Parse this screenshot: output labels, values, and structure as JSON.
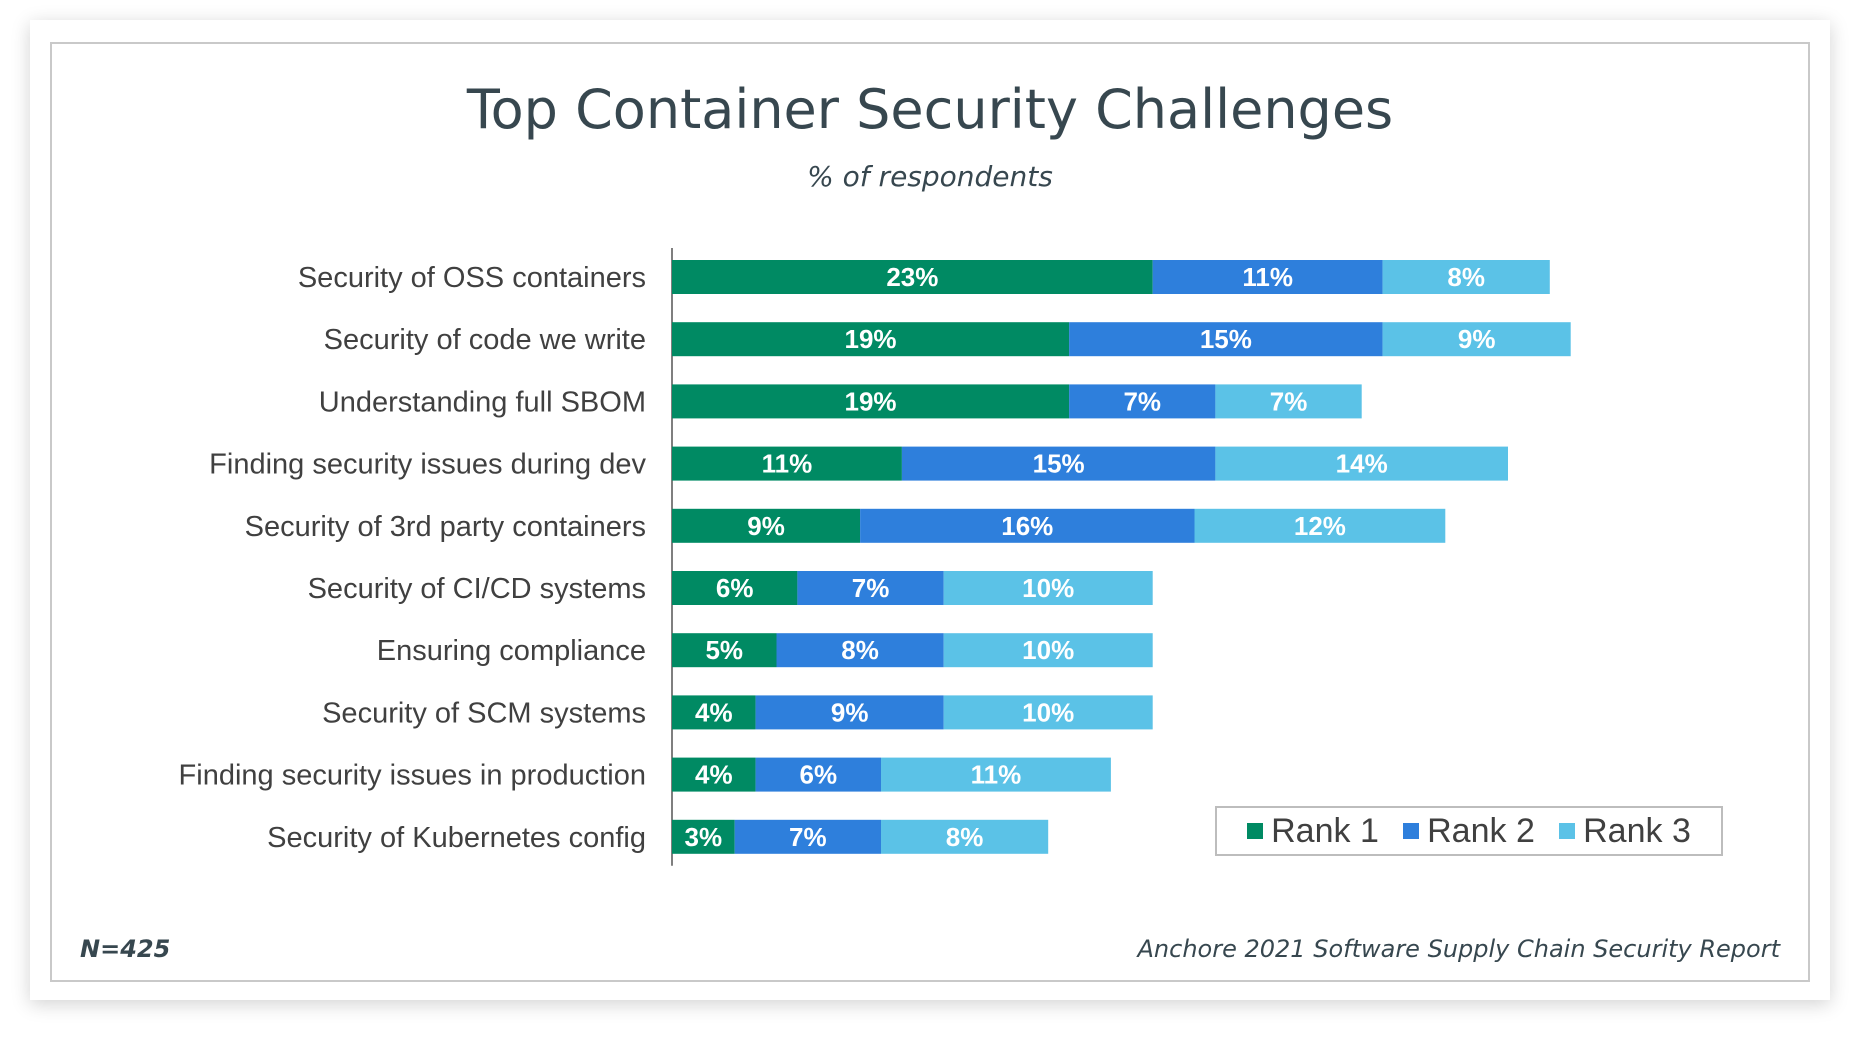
{
  "chart_data": {
    "type": "bar",
    "orientation": "horizontal",
    "stacked": true,
    "title": "Top Container Security Challenges",
    "subtitle": "% of respondents",
    "categories": [
      "Security of OSS containers",
      "Security of code we write",
      "Understanding full SBOM",
      "Finding security issues during dev",
      "Security of 3rd party containers",
      "Security of CI/CD systems",
      "Ensuring compliance",
      "Security of SCM systems",
      "Finding security issues in production",
      "Security of Kubernetes config"
    ],
    "series": [
      {
        "name": "Rank 1",
        "color": "#008a63",
        "values": [
          23,
          19,
          19,
          11,
          9,
          6,
          5,
          4,
          4,
          3
        ]
      },
      {
        "name": "Rank 2",
        "color": "#2e7fdc",
        "values": [
          11,
          15,
          7,
          15,
          16,
          7,
          8,
          9,
          6,
          7
        ]
      },
      {
        "name": "Rank 3",
        "color": "#5bc2e7",
        "values": [
          8,
          9,
          7,
          14,
          12,
          10,
          10,
          10,
          11,
          8
        ]
      }
    ],
    "value_suffix": "%",
    "legend_position": "bottom-right",
    "grid": false
  },
  "footer": {
    "sample": "N=425",
    "source": "Anchore 2021 Software Supply Chain Security Report"
  }
}
